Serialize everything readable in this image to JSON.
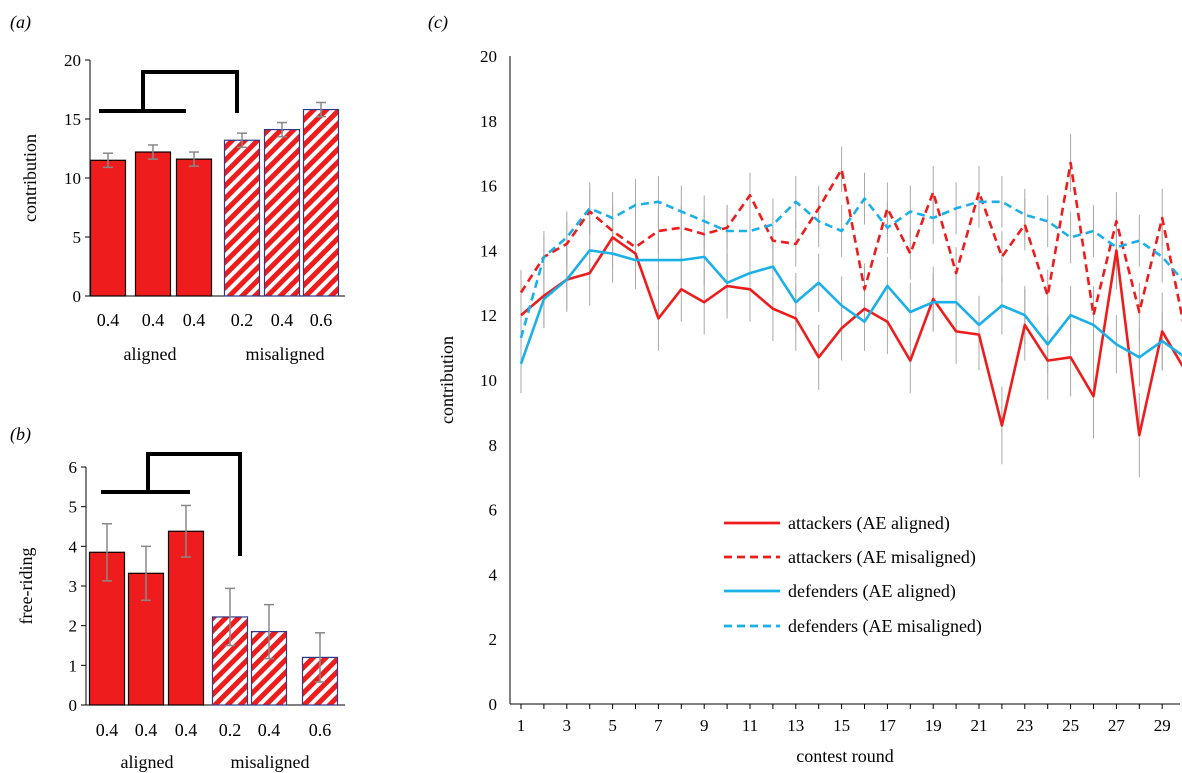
{
  "panels": [
    "(a)",
    "(b)",
    "(c)"
  ],
  "colors": {
    "red": "#ee1c1c",
    "blue": "#1ab0e8",
    "bar_outline": "#000000",
    "hatch_outline": "#2e3a87",
    "error_bar": "#888888",
    "axis": "#000000"
  },
  "chart_data": [
    {
      "panel": "(a)",
      "type": "bar",
      "ylabel": "contribution",
      "ylim": [
        0,
        20
      ],
      "yticks": [
        0,
        5,
        10,
        15,
        20
      ],
      "categories": [
        "0.4",
        "0.4",
        "0.4",
        "0.2",
        "0.4",
        "0.6"
      ],
      "groups": [
        {
          "label": "aligned",
          "indices": [
            0,
            1,
            2
          ],
          "style": "solid"
        },
        {
          "label": "misaligned",
          "indices": [
            3,
            4,
            5
          ],
          "style": "hatched"
        }
      ],
      "values": [
        11.5,
        12.2,
        11.6,
        13.2,
        14.1,
        15.8
      ],
      "errors": [
        0.6,
        0.6,
        0.6,
        0.6,
        0.6,
        0.6
      ],
      "comparison_bracket": true
    },
    {
      "panel": "(b)",
      "type": "bar",
      "ylabel": "free-riding",
      "ylim": [
        0,
        6
      ],
      "yticks": [
        0,
        1,
        2,
        3,
        4,
        5,
        6
      ],
      "categories": [
        "0.4",
        "0.4",
        "0.4",
        "0.2",
        "0.4",
        "0.6"
      ],
      "groups": [
        {
          "label": "aligned",
          "indices": [
            0,
            1,
            2
          ],
          "style": "solid"
        },
        {
          "label": "misaligned",
          "indices": [
            3,
            4,
            5
          ],
          "style": "hatched"
        }
      ],
      "values": [
        3.85,
        3.32,
        4.38,
        2.22,
        1.85,
        1.2
      ],
      "errors": [
        0.72,
        0.68,
        0.65,
        0.72,
        0.68,
        0.62
      ],
      "comparison_bracket": true
    },
    {
      "panel": "(c)",
      "type": "line",
      "xlabel": "contest round",
      "ylabel": "contribution",
      "ylim": [
        0,
        20
      ],
      "yticks": [
        0,
        2,
        4,
        6,
        8,
        10,
        12,
        14,
        16,
        18,
        20
      ],
      "xlim": [
        1,
        30
      ],
      "xticks": [
        1,
        3,
        5,
        7,
        9,
        11,
        13,
        15,
        17,
        19,
        21,
        23,
        25,
        27,
        29
      ],
      "x": [
        1,
        2,
        3,
        4,
        5,
        6,
        7,
        8,
        9,
        10,
        11,
        12,
        13,
        14,
        15,
        16,
        17,
        18,
        19,
        20,
        21,
        22,
        23,
        24,
        25,
        26,
        27,
        28,
        29,
        30
      ],
      "series": [
        {
          "name": "attackers (AE aligned)",
          "color": "red",
          "dash": false,
          "values": [
            12.0,
            12.6,
            13.1,
            13.3,
            14.4,
            13.9,
            11.9,
            12.8,
            12.4,
            12.9,
            12.8,
            12.2,
            11.9,
            10.7,
            11.6,
            12.2,
            11.8,
            10.6,
            12.5,
            11.5,
            11.4,
            8.6,
            11.7,
            10.6,
            10.7,
            9.5,
            14.0,
            8.3,
            11.5,
            10.3
          ],
          "errors": [
            1.0,
            1.0,
            1.0,
            1.0,
            1.0,
            1.0,
            1.0,
            1.0,
            1.0,
            1.0,
            1.0,
            1.0,
            1.0,
            1.0,
            1.0,
            1.0,
            1.0,
            1.0,
            1.0,
            1.0,
            1.1,
            1.2,
            1.1,
            1.2,
            1.2,
            1.3,
            1.2,
            1.3,
            1.2,
            1.3
          ]
        },
        {
          "name": "attackers (AE misaligned)",
          "color": "red",
          "dash": true,
          "values": [
            12.7,
            13.8,
            14.2,
            15.2,
            14.6,
            14.1,
            14.6,
            14.7,
            14.5,
            14.7,
            15.7,
            14.3,
            14.2,
            15.3,
            16.5,
            12.8,
            15.3,
            13.9,
            15.8,
            13.3,
            15.8,
            13.8,
            14.8,
            12.6,
            16.7,
            12.0,
            14.9,
            12.1,
            15.0,
            11.5
          ],
          "errors": [
            0.7,
            0.7,
            0.7,
            0.7,
            0.7,
            0.7,
            0.7,
            0.7,
            0.7,
            0.7,
            0.7,
            0.7,
            0.7,
            0.7,
            0.7,
            0.8,
            0.8,
            0.8,
            0.8,
            0.8,
            0.8,
            0.8,
            0.8,
            0.8,
            0.9,
            0.9,
            0.9,
            0.9,
            0.9,
            0.9
          ]
        },
        {
          "name": "defenders (AE aligned)",
          "color": "blue",
          "dash": false,
          "values": [
            10.5,
            12.5,
            13.1,
            14.0,
            13.9,
            13.7,
            13.7,
            13.7,
            13.8,
            13.0,
            13.3,
            13.5,
            12.4,
            13.0,
            12.3,
            11.8,
            12.9,
            12.1,
            12.4,
            12.4,
            11.7,
            12.3,
            12.0,
            11.1,
            12.0,
            11.7,
            11.1,
            10.7,
            11.2,
            10.7
          ],
          "errors": [
            0.9,
            0.9,
            0.9,
            0.9,
            0.9,
            0.9,
            0.9,
            0.9,
            0.9,
            0.9,
            0.9,
            0.9,
            0.9,
            0.9,
            0.9,
            0.9,
            0.9,
            0.9,
            0.9,
            0.9,
            0.9,
            0.9,
            0.9,
            0.9,
            0.9,
            0.9,
            0.9,
            0.9,
            0.9,
            0.9
          ]
        },
        {
          "name": "defenders (AE misaligned)",
          "color": "blue",
          "dash": true,
          "values": [
            11.3,
            13.8,
            14.4,
            15.3,
            15.0,
            15.4,
            15.5,
            15.2,
            14.9,
            14.6,
            14.6,
            14.8,
            15.5,
            14.9,
            14.6,
            15.6,
            14.7,
            15.2,
            15.0,
            15.3,
            15.5,
            15.5,
            15.1,
            14.9,
            14.4,
            14.6,
            14.1,
            14.3,
            13.8,
            13.0
          ],
          "errors": [
            0.8,
            0.8,
            0.8,
            0.8,
            0.8,
            0.8,
            0.8,
            0.8,
            0.8,
            0.8,
            0.8,
            0.8,
            0.8,
            0.8,
            0.8,
            0.8,
            0.8,
            0.8,
            0.8,
            0.8,
            0.8,
            0.8,
            0.8,
            0.8,
            0.8,
            0.8,
            0.8,
            0.8,
            0.8,
            0.8
          ]
        }
      ],
      "legend_position": "lower-center"
    }
  ]
}
